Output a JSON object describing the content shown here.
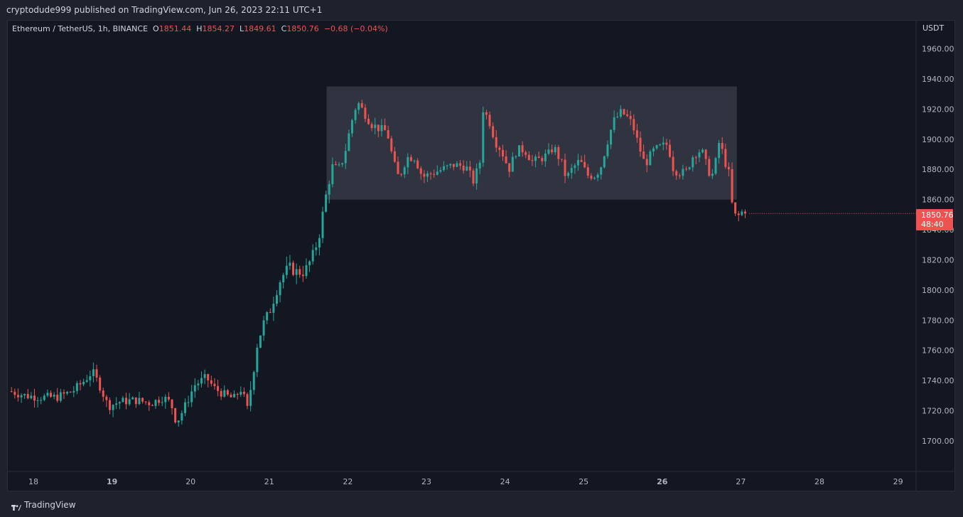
{
  "header": {
    "published_text": "cryptodude999 published on TradingView.com, Jun 26, 2023 22:11 UTC+1"
  },
  "legend": {
    "symbol": "Ethereum / TetherUS, 1h, BINANCE",
    "open_label": "O",
    "open": "1851.44",
    "high_label": "H",
    "high": "1854.27",
    "low_label": "L",
    "low": "1849.61",
    "close_label": "C",
    "close": "1850.76",
    "change": "−0.68 (−0.04%)"
  },
  "price_axis": {
    "unit": "USDT",
    "last_price": "1850.76",
    "countdown": "48:40"
  },
  "footer": {
    "brand": "TradingView"
  },
  "colors": {
    "up": "#26a69a",
    "down": "#ef5350",
    "background": "#131722",
    "range_box": "#363a45"
  },
  "chart_data": {
    "type": "candlestick",
    "title": "Ethereum / TetherUS, 1h, BINANCE",
    "ylim": [
      1680,
      1980
    ],
    "y_ticks": [
      1700,
      1720,
      1740,
      1760,
      1780,
      1800,
      1820,
      1840,
      1860,
      1880,
      1900,
      1920,
      1940,
      1960
    ],
    "x_ticks": [
      {
        "label": "18",
        "day": 18,
        "bold": false
      },
      {
        "label": "19",
        "day": 19,
        "bold": true
      },
      {
        "label": "20",
        "day": 20,
        "bold": false
      },
      {
        "label": "21",
        "day": 21,
        "bold": false
      },
      {
        "label": "22",
        "day": 22,
        "bold": false
      },
      {
        "label": "23",
        "day": 23,
        "bold": false
      },
      {
        "label": "24",
        "day": 24,
        "bold": false
      },
      {
        "label": "25",
        "day": 25,
        "bold": false
      },
      {
        "label": "26",
        "day": 26,
        "bold": true
      },
      {
        "label": "27",
        "day": 27,
        "bold": false
      },
      {
        "label": "28",
        "day": 28,
        "bold": false
      },
      {
        "label": "29",
        "day": 29,
        "bold": false
      }
    ],
    "range_box": {
      "day_start": 21.73,
      "day_end": 26.95,
      "price_low": 1860,
      "price_high": 1935
    },
    "x_start_day": 17.68,
    "ohlc_close_path": [
      [
        17.7,
        1733
      ],
      [
        17.9,
        1730
      ],
      [
        18.1,
        1729
      ],
      [
        18.3,
        1729
      ],
      [
        18.5,
        1733
      ],
      [
        18.65,
        1740
      ],
      [
        18.75,
        1746
      ],
      [
        18.85,
        1736
      ],
      [
        18.95,
        1723
      ],
      [
        19.1,
        1726
      ],
      [
        19.3,
        1727
      ],
      [
        19.5,
        1725
      ],
      [
        19.65,
        1729
      ],
      [
        19.75,
        1725
      ],
      [
        19.82,
        1712
      ],
      [
        19.92,
        1722
      ],
      [
        20.05,
        1737
      ],
      [
        20.2,
        1742
      ],
      [
        20.3,
        1735
      ],
      [
        20.45,
        1730
      ],
      [
        20.55,
        1728
      ],
      [
        20.65,
        1735
      ],
      [
        20.72,
        1720
      ],
      [
        20.78,
        1740
      ],
      [
        20.85,
        1765
      ],
      [
        20.93,
        1778
      ],
      [
        21.0,
        1785
      ],
      [
        21.08,
        1798
      ],
      [
        21.15,
        1808
      ],
      [
        21.25,
        1815
      ],
      [
        21.35,
        1812
      ],
      [
        21.45,
        1812
      ],
      [
        21.55,
        1822
      ],
      [
        21.63,
        1835
      ],
      [
        21.68,
        1850
      ],
      [
        21.73,
        1865
      ],
      [
        21.8,
        1882
      ],
      [
        21.88,
        1880
      ],
      [
        21.95,
        1888
      ],
      [
        22.05,
        1912
      ],
      [
        22.12,
        1925
      ],
      [
        22.18,
        1920
      ],
      [
        22.3,
        1910
      ],
      [
        22.4,
        1907
      ],
      [
        22.5,
        1905
      ],
      [
        22.58,
        1885
      ],
      [
        22.65,
        1874
      ],
      [
        22.75,
        1888
      ],
      [
        22.85,
        1888
      ],
      [
        22.95,
        1875
      ],
      [
        23.05,
        1877
      ],
      [
        23.2,
        1880
      ],
      [
        23.35,
        1883
      ],
      [
        23.5,
        1882
      ],
      [
        23.6,
        1872
      ],
      [
        23.68,
        1885
      ],
      [
        23.72,
        1920
      ],
      [
        23.8,
        1912
      ],
      [
        23.88,
        1898
      ],
      [
        23.95,
        1893
      ],
      [
        24.05,
        1880
      ],
      [
        24.15,
        1893
      ],
      [
        24.25,
        1893
      ],
      [
        24.35,
        1885
      ],
      [
        24.45,
        1887
      ],
      [
        24.55,
        1890
      ],
      [
        24.62,
        1895
      ],
      [
        24.72,
        1884
      ],
      [
        24.78,
        1874
      ],
      [
        24.85,
        1880
      ],
      [
        24.95,
        1886
      ],
      [
        25.05,
        1876
      ],
      [
        25.15,
        1876
      ],
      [
        25.22,
        1882
      ],
      [
        25.3,
        1898
      ],
      [
        25.38,
        1912
      ],
      [
        25.48,
        1918
      ],
      [
        25.55,
        1915
      ],
      [
        25.62,
        1910
      ],
      [
        25.7,
        1896
      ],
      [
        25.78,
        1883
      ],
      [
        25.88,
        1892
      ],
      [
        25.98,
        1895
      ],
      [
        26.08,
        1897
      ],
      [
        26.12,
        1882
      ],
      [
        26.2,
        1878
      ],
      [
        26.3,
        1878
      ],
      [
        26.4,
        1890
      ],
      [
        26.5,
        1893
      ],
      [
        26.58,
        1880
      ],
      [
        26.63,
        1875
      ],
      [
        26.68,
        1885
      ],
      [
        26.73,
        1900
      ],
      [
        26.78,
        1888
      ],
      [
        26.85,
        1877
      ],
      [
        26.9,
        1851
      ],
      [
        26.95,
        1848
      ],
      [
        27.02,
        1852
      ],
      [
        27.08,
        1851
      ]
    ],
    "last_close": 1850.76
  }
}
